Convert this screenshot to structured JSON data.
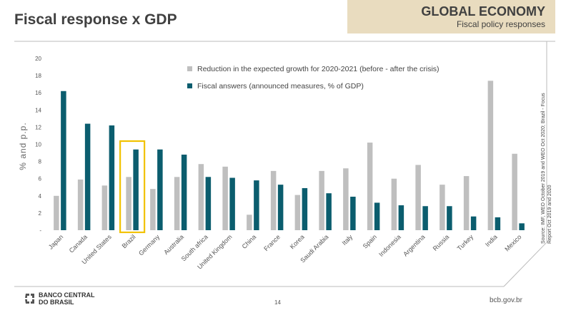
{
  "header": {
    "title": "Fiscal response x GDP",
    "brand_title": "GLOBAL ECONOMY",
    "brand_subtitle": "Fiscal policy responses"
  },
  "footer": {
    "logo_line1": "BANCO CENTRAL",
    "logo_line2": "DO BRASIL",
    "page": "14",
    "site": "bcb.gov.br"
  },
  "source_line1": "Source: IMF, WEO October 2019 and WEO Oct 2020; Brazil - Focus",
  "source_line2": "Report Oct 2019 and 2020",
  "colors": {
    "gray": "#bfbfbf",
    "teal": "#0b5d6e",
    "highlight": "#f2c200"
  },
  "chart_data": {
    "type": "bar",
    "ylabel": "% and p.p.",
    "ylim": [
      0,
      20
    ],
    "yticks": [
      "-",
      "2",
      "4",
      "6",
      "8",
      "10",
      "12",
      "14",
      "16",
      "18",
      "20"
    ],
    "legend_position": "top",
    "highlighted_category": "Brazil",
    "categories": [
      "Japan",
      "Canada",
      "United States",
      "Brazil",
      "Germany",
      "Australia",
      "South africa",
      "United Kingdom",
      "China",
      "France",
      "Korea",
      "Saudi Arabia",
      "Italy",
      "Spain",
      "Indonesia",
      "Argentina",
      "Russia",
      "Turkey",
      "India",
      "Mexico"
    ],
    "series": [
      {
        "name": "Reduction in the expected growth for 2020-2021 (before - after the crisis)",
        "color": "#bfbfbf",
        "values": [
          4.0,
          5.9,
          5.2,
          6.2,
          4.8,
          6.2,
          7.7,
          7.4,
          1.8,
          6.9,
          4.1,
          6.9,
          7.2,
          10.2,
          6.0,
          7.6,
          5.3,
          6.3,
          17.4,
          8.9
        ]
      },
      {
        "name": "Fiscal answers (announced measures, % of GDP)",
        "color": "#0b5d6e",
        "values": [
          16.2,
          12.4,
          12.2,
          9.4,
          9.4,
          8.8,
          6.2,
          6.1,
          5.8,
          5.3,
          4.9,
          4.3,
          3.9,
          3.2,
          2.9,
          2.8,
          2.8,
          1.6,
          1.5,
          0.8
        ]
      }
    ]
  }
}
